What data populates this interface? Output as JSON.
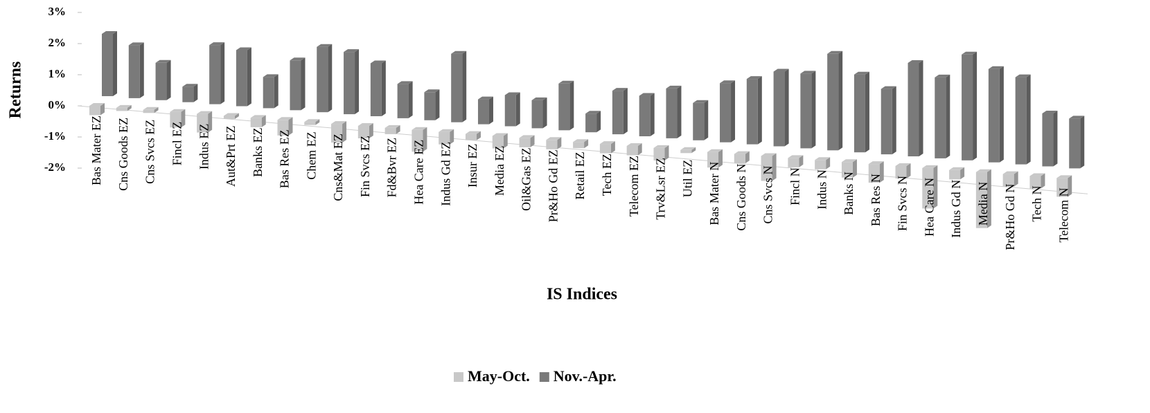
{
  "chart_data": {
    "type": "bar3d",
    "y_label": "Returns",
    "x_label": "IS Indices",
    "categories": [
      "Bas Mater EZ",
      "Cns Goods EZ",
      "Cns Svcs EZ",
      "Fincl EZ",
      "Indus EZ",
      "Aut&Prt EZ",
      "Banks EZ",
      "Bas Res EZ",
      "Chem EZ",
      "Cns&Mat EZ",
      "Fin Svcs EZ",
      "Fd&Bvr EZ",
      "Hea Care EZ",
      "Indus Gd EZ",
      "Insur EZ",
      "Media EZ",
      "Oil&Gas EZ",
      "Pr&Ho Gd EZ",
      "Retail EZ",
      "Tech EZ",
      "Telecom EZ",
      "Trv&Lsr EZ",
      "Util EZ",
      "Bas Mater N",
      "Cns Goods N",
      "Cns Svcs N",
      "Fincl N",
      "Indus N",
      "Banks N",
      "Bas Res N",
      "Fin Svcs N",
      "Hea Care N",
      "Indus Gd N",
      "Media N",
      "Pr&Ho Gd N",
      "Tech N",
      "Telecom N"
    ],
    "series": [
      {
        "name": "May-Oct.",
        "color": "#c8c8c8",
        "values": [
          -0.3,
          -0.1,
          -0.1,
          -0.5,
          -0.6,
          -0.1,
          -0.3,
          -0.5,
          -0.1,
          -0.6,
          -0.4,
          -0.2,
          -0.7,
          -0.4,
          -0.2,
          -0.4,
          -0.3,
          -0.3,
          -0.2,
          -0.3,
          -0.3,
          -0.4,
          -0.1,
          -0.5,
          -0.3,
          -0.8,
          -0.3,
          -0.3,
          -0.5,
          -0.6,
          -0.4,
          -1.3,
          -0.3,
          -1.8,
          -0.4,
          -0.4,
          -0.6
        ]
      },
      {
        "name": "Nov.-Apr.",
        "color": "#7a7a7a",
        "values": [
          2.0,
          1.7,
          1.2,
          0.5,
          1.9,
          1.8,
          1.0,
          1.6,
          2.1,
          2.0,
          1.7,
          1.1,
          0.9,
          2.2,
          0.8,
          1.0,
          0.9,
          1.5,
          0.6,
          1.4,
          1.3,
          1.6,
          1.2,
          1.9,
          2.1,
          2.4,
          2.4,
          3.1,
          2.5,
          2.1,
          3.0,
          2.6,
          3.4,
          3.0,
          2.8,
          1.7,
          1.6
        ]
      }
    ],
    "ylim": [
      -2,
      3
    ],
    "yticks": [
      {
        "value": -2,
        "label": "-2%"
      },
      {
        "value": -1,
        "label": "-1%"
      },
      {
        "value": 0,
        "label": "0%"
      },
      {
        "value": 1,
        "label": "1%"
      },
      {
        "value": 2,
        "label": "2%"
      },
      {
        "value": 3,
        "label": "3%"
      }
    ],
    "legend": "bottom"
  }
}
